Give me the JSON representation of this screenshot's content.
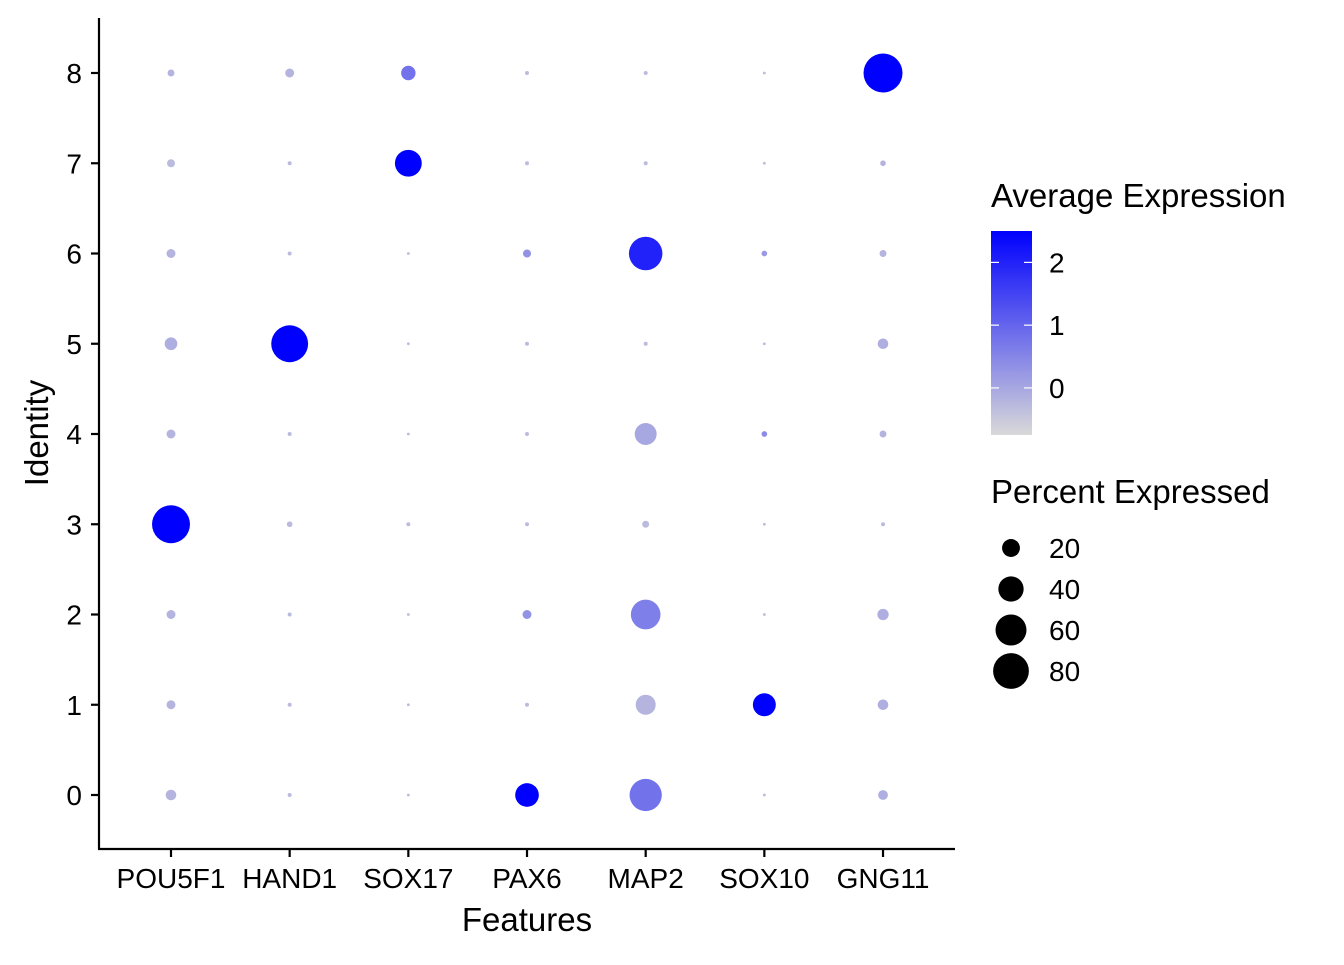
{
  "chart_data": {
    "type": "dot",
    "xlabel": "Features",
    "ylabel": "Identity",
    "features": [
      "POU5F1",
      "HAND1",
      "SOX17",
      "PAX6",
      "MAP2",
      "SOX10",
      "GNG11"
    ],
    "identities": [
      "0",
      "1",
      "2",
      "3",
      "4",
      "5",
      "6",
      "7",
      "8"
    ],
    "color_legend": {
      "title": "Average Expression",
      "min": -0.75,
      "max": 2.5,
      "ticks": [
        "0",
        "1",
        "2"
      ],
      "low_color": "#d9d9d9",
      "high_color": "#0000ff"
    },
    "size_legend": {
      "title": "Percent Expressed",
      "values": [
        20,
        40,
        60,
        80
      ],
      "labels": [
        "20",
        "40",
        "60",
        "80"
      ]
    },
    "points": [
      {
        "feature": "POU5F1",
        "identity": "0",
        "pct": 7,
        "avg_exp": -0.2
      },
      {
        "feature": "POU5F1",
        "identity": "1",
        "pct": 5,
        "avg_exp": -0.2
      },
      {
        "feature": "POU5F1",
        "identity": "2",
        "pct": 5,
        "avg_exp": -0.2
      },
      {
        "feature": "POU5F1",
        "identity": "3",
        "pct": 90,
        "avg_exp": 2.5
      },
      {
        "feature": "POU5F1",
        "identity": "4",
        "pct": 5,
        "avg_exp": -0.2
      },
      {
        "feature": "POU5F1",
        "identity": "5",
        "pct": 10,
        "avg_exp": -0.1
      },
      {
        "feature": "POU5F1",
        "identity": "6",
        "pct": 5,
        "avg_exp": -0.2
      },
      {
        "feature": "POU5F1",
        "identity": "7",
        "pct": 4,
        "avg_exp": -0.3
      },
      {
        "feature": "POU5F1",
        "identity": "8",
        "pct": 3,
        "avg_exp": -0.2
      },
      {
        "feature": "HAND1",
        "identity": "0",
        "pct": 1,
        "avg_exp": -0.3
      },
      {
        "feature": "HAND1",
        "identity": "1",
        "pct": 1,
        "avg_exp": -0.3
      },
      {
        "feature": "HAND1",
        "identity": "2",
        "pct": 1,
        "avg_exp": -0.3
      },
      {
        "feature": "HAND1",
        "identity": "3",
        "pct": 2,
        "avg_exp": -0.3
      },
      {
        "feature": "HAND1",
        "identity": "4",
        "pct": 1,
        "avg_exp": -0.3
      },
      {
        "feature": "HAND1",
        "identity": "5",
        "pct": 85,
        "avg_exp": 2.5
      },
      {
        "feature": "HAND1",
        "identity": "6",
        "pct": 1,
        "avg_exp": -0.3
      },
      {
        "feature": "HAND1",
        "identity": "7",
        "pct": 1,
        "avg_exp": -0.3
      },
      {
        "feature": "HAND1",
        "identity": "8",
        "pct": 5,
        "avg_exp": -0.2
      },
      {
        "feature": "SOX17",
        "identity": "0",
        "pct": 0.5,
        "avg_exp": -0.3
      },
      {
        "feature": "SOX17",
        "identity": "1",
        "pct": 0.5,
        "avg_exp": -0.3
      },
      {
        "feature": "SOX17",
        "identity": "2",
        "pct": 0.5,
        "avg_exp": -0.3
      },
      {
        "feature": "SOX17",
        "identity": "3",
        "pct": 1,
        "avg_exp": -0.3
      },
      {
        "feature": "SOX17",
        "identity": "4",
        "pct": 0.5,
        "avg_exp": -0.3
      },
      {
        "feature": "SOX17",
        "identity": "5",
        "pct": 0.5,
        "avg_exp": -0.3
      },
      {
        "feature": "SOX17",
        "identity": "6",
        "pct": 0.5,
        "avg_exp": -0.3
      },
      {
        "feature": "SOX17",
        "identity": "7",
        "pct": 45,
        "avg_exp": 2.5
      },
      {
        "feature": "SOX17",
        "identity": "8",
        "pct": 13,
        "avg_exp": 0.8
      },
      {
        "feature": "PAX6",
        "identity": "0",
        "pct": 35,
        "avg_exp": 2.5
      },
      {
        "feature": "PAX6",
        "identity": "1",
        "pct": 1,
        "avg_exp": -0.3
      },
      {
        "feature": "PAX6",
        "identity": "2",
        "pct": 5,
        "avg_exp": 0.3
      },
      {
        "feature": "PAX6",
        "identity": "3",
        "pct": 1,
        "avg_exp": -0.3
      },
      {
        "feature": "PAX6",
        "identity": "4",
        "pct": 1,
        "avg_exp": -0.3
      },
      {
        "feature": "PAX6",
        "identity": "5",
        "pct": 1,
        "avg_exp": -0.3
      },
      {
        "feature": "PAX6",
        "identity": "6",
        "pct": 4,
        "avg_exp": 0.3
      },
      {
        "feature": "PAX6",
        "identity": "7",
        "pct": 1,
        "avg_exp": -0.3
      },
      {
        "feature": "PAX6",
        "identity": "8",
        "pct": 1,
        "avg_exp": -0.3
      },
      {
        "feature": "MAP2",
        "identity": "0",
        "pct": 65,
        "avg_exp": 0.8
      },
      {
        "feature": "MAP2",
        "identity": "1",
        "pct": 25,
        "avg_exp": -0.2
      },
      {
        "feature": "MAP2",
        "identity": "2",
        "pct": 55,
        "avg_exp": 0.6
      },
      {
        "feature": "MAP2",
        "identity": "3",
        "pct": 3,
        "avg_exp": -0.3
      },
      {
        "feature": "MAP2",
        "identity": "4",
        "pct": 30,
        "avg_exp": 0.0
      },
      {
        "feature": "MAP2",
        "identity": "5",
        "pct": 1,
        "avg_exp": -0.3
      },
      {
        "feature": "MAP2",
        "identity": "6",
        "pct": 70,
        "avg_exp": 2.0
      },
      {
        "feature": "MAP2",
        "identity": "7",
        "pct": 1,
        "avg_exp": -0.3
      },
      {
        "feature": "MAP2",
        "identity": "8",
        "pct": 1,
        "avg_exp": -0.3
      },
      {
        "feature": "SOX10",
        "identity": "0",
        "pct": 0.5,
        "avg_exp": -0.3
      },
      {
        "feature": "SOX10",
        "identity": "1",
        "pct": 33,
        "avg_exp": 2.5
      },
      {
        "feature": "SOX10",
        "identity": "2",
        "pct": 0.5,
        "avg_exp": -0.3
      },
      {
        "feature": "SOX10",
        "identity": "3",
        "pct": 0.5,
        "avg_exp": -0.3
      },
      {
        "feature": "SOX10",
        "identity": "4",
        "pct": 2,
        "avg_exp": 0.4
      },
      {
        "feature": "SOX10",
        "identity": "5",
        "pct": 0.5,
        "avg_exp": -0.3
      },
      {
        "feature": "SOX10",
        "identity": "6",
        "pct": 2,
        "avg_exp": 0.2
      },
      {
        "feature": "SOX10",
        "identity": "7",
        "pct": 0.5,
        "avg_exp": -0.3
      },
      {
        "feature": "SOX10",
        "identity": "8",
        "pct": 0.5,
        "avg_exp": -0.3
      },
      {
        "feature": "GNG11",
        "identity": "0",
        "pct": 6,
        "avg_exp": -0.1
      },
      {
        "feature": "GNG11",
        "identity": "1",
        "pct": 7,
        "avg_exp": -0.1
      },
      {
        "feature": "GNG11",
        "identity": "2",
        "pct": 8,
        "avg_exp": -0.1
      },
      {
        "feature": "GNG11",
        "identity": "3",
        "pct": 1,
        "avg_exp": -0.3
      },
      {
        "feature": "GNG11",
        "identity": "4",
        "pct": 3,
        "avg_exp": -0.2
      },
      {
        "feature": "GNG11",
        "identity": "5",
        "pct": 7,
        "avg_exp": -0.1
      },
      {
        "feature": "GNG11",
        "identity": "6",
        "pct": 3,
        "avg_exp": -0.2
      },
      {
        "feature": "GNG11",
        "identity": "7",
        "pct": 2,
        "avg_exp": -0.2
      },
      {
        "feature": "GNG11",
        "identity": "8",
        "pct": 95,
        "avg_exp": 2.5
      }
    ]
  }
}
